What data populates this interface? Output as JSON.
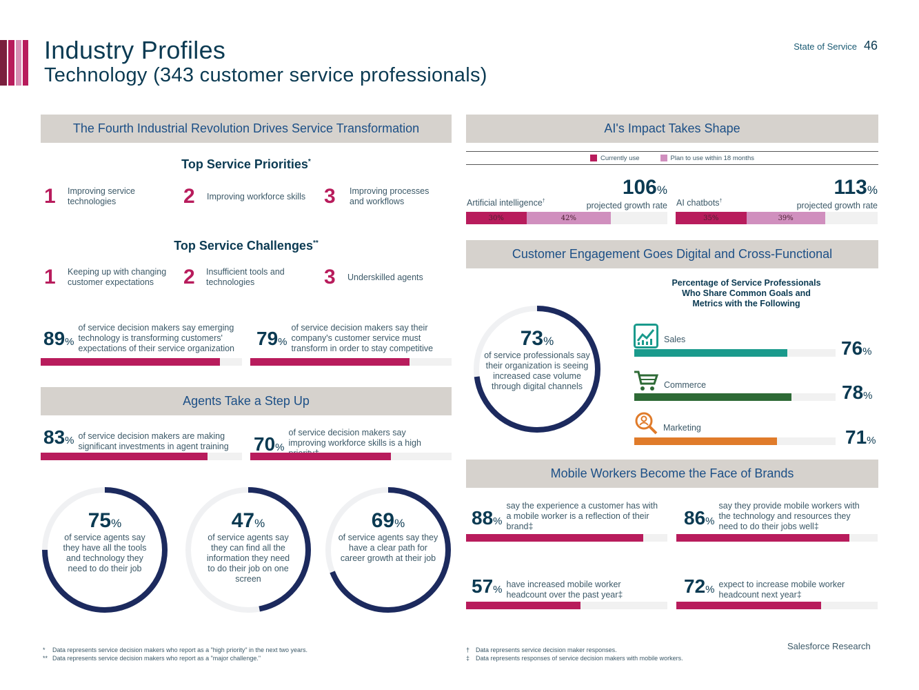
{
  "header": {
    "title": "Industry Profiles",
    "subtitle": "Technology (343 customer service professionals)",
    "report": "State of Service",
    "page": "46",
    "stripe_colors": [
      "#7a1f3d",
      "#b81c5c",
      "#d88fb5",
      "#e7b3cd"
    ]
  },
  "colors": {
    "magenta": "#b81c5c",
    "navy": "#1c2a5e",
    "band": "#d6d2cd",
    "pink": "#d08fbe",
    "teal": "#1a9a8c",
    "green": "#2e6a36",
    "orange": "#e07b2a"
  },
  "left": {
    "band1": "The Fourth Industrial Revolution Drives Service Transformation",
    "priorities_title": "Top Service Priorities",
    "priorities_mark": "*",
    "priorities": [
      {
        "num": "1",
        "text": "Improving service technologies"
      },
      {
        "num": "2",
        "text": "Improving workforce skills"
      },
      {
        "num": "3",
        "text": "Improving processes and workflows"
      }
    ],
    "challenges_title": "Top Service Challenges",
    "challenges_mark": "**",
    "challenges": [
      {
        "num": "1",
        "text": "Keeping up with changing customer expectations"
      },
      {
        "num": "2",
        "text": "Insufficient tools and technologies"
      },
      {
        "num": "3",
        "text": "Underskilled agents"
      }
    ],
    "stats1": [
      {
        "value": 89,
        "num": "89",
        "text": "of service decision makers say emerging technology is transforming customers' expectations of their service organization"
      },
      {
        "value": 79,
        "num": "79",
        "text": "of service decision makers say their company's customer service must transform in order to stay competitive"
      }
    ],
    "band2": "Agents Take a Step Up",
    "stats2": [
      {
        "value": 83,
        "num": "83",
        "text": "of service decision makers are making significant investments in agent training"
      },
      {
        "value": 70,
        "num": "70",
        "text": "of service decision makers say improving workforce skills is a high priority†"
      }
    ],
    "rings": [
      {
        "value": 75,
        "num": "75",
        "text": "of service agents say they have all the tools and technology they need to do their job"
      },
      {
        "value": 47,
        "num": "47",
        "text": "of service agents say they can find all the information they need to do their job on one screen"
      },
      {
        "value": 69,
        "num": "69",
        "text": "of service agents say they have a clear path for career growth at their job"
      }
    ],
    "footnotes": [
      {
        "mark": "*",
        "text": "Data represents service decision makers who report as a \"high priority\" in the next two years."
      },
      {
        "mark": "**",
        "text": "Data represents service decision makers who report as a \"major challenge.\""
      }
    ]
  },
  "right": {
    "band1": "AI's Impact Takes Shape",
    "legend": [
      {
        "label": "Currently use",
        "color": "#b81c5c"
      },
      {
        "label": "Plan to use within 18 months",
        "color": "#d08fbe"
      }
    ],
    "ai": [
      {
        "label": "Artificial intelligence",
        "mark": "†",
        "growth": "106",
        "growth_text": "projected growth rate",
        "current": 30,
        "current_label": "30%",
        "plan": 42,
        "plan_label": "42%"
      },
      {
        "label": "AI chatbots",
        "mark": "†",
        "growth": "113",
        "growth_text": "projected growth rate",
        "current": 35,
        "current_label": "35%",
        "plan": 39,
        "plan_label": "39%"
      }
    ],
    "band2": "Customer Engagement Goes Digital and Cross-Functional",
    "big_ring": {
      "value": 73,
      "num": "73",
      "text": "of service professionals say their organization is seeing increased case volume through digital channels"
    },
    "shared_title": "Percentage of Service Professionals Who Share Common Goals and Metrics with the Following",
    "departments": [
      {
        "label": "Sales",
        "value": 76,
        "num": "76",
        "icon": "chart-icon",
        "color": "#1a9a8c"
      },
      {
        "label": "Commerce",
        "value": 78,
        "num": "78",
        "icon": "cart-icon",
        "color": "#2e6a36"
      },
      {
        "label": "Marketing",
        "value": 71,
        "num": "71",
        "icon": "magnifier-icon",
        "color": "#e07b2a"
      }
    ],
    "band3": "Mobile Workers Become the Face of Brands",
    "mobile": [
      {
        "value": 88,
        "num": "88",
        "text": "say the experience a customer has with a mobile worker is a reflection of their brand‡"
      },
      {
        "value": 86,
        "num": "86",
        "text": "say they provide mobile workers with the technology and resources they need to do their jobs well‡"
      },
      {
        "value": 57,
        "num": "57",
        "text": "have increased mobile worker headcount over the past year‡"
      },
      {
        "value": 72,
        "num": "72",
        "text": "expect to increase mobile worker headcount next year‡"
      }
    ],
    "footnotes": [
      {
        "mark": "†",
        "text": "Data represents service decision maker responses."
      },
      {
        "mark": "‡",
        "text": "Data represents responses of service decision makers with mobile workers."
      }
    ],
    "brand": "Salesforce Research"
  }
}
